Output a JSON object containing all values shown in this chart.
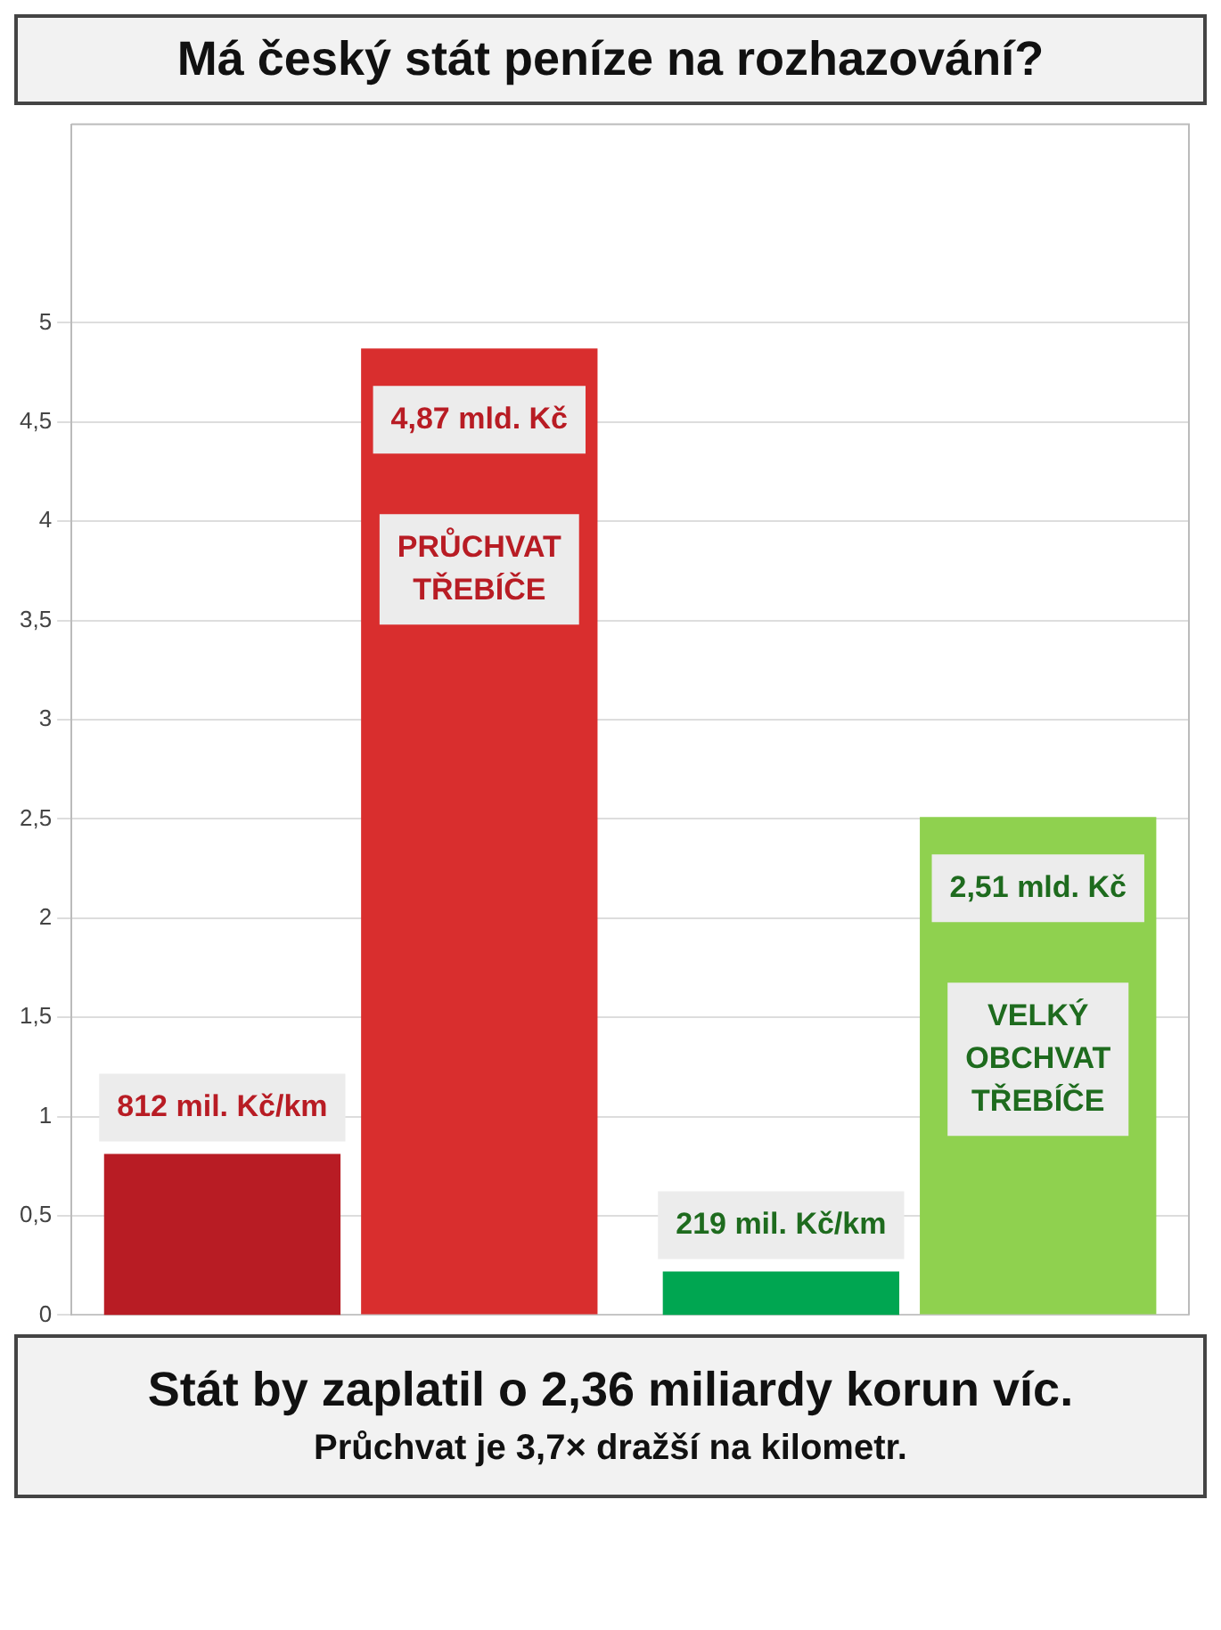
{
  "chart_data": {
    "type": "bar",
    "title": "Má český stát peníze na rozhazování?",
    "categories": [
      "PRŮCHVAT TŘEBÍČE",
      "VELKÝ OBCHVAT TŘEBÍČE"
    ],
    "series": [
      {
        "colors": [
          "#b81c24",
          "#00a651"
        ],
        "axis": "y2",
        "values": [
          812,
          219
        ],
        "value_labels": [
          "812 mil. Kč/km",
          "219 mil. Kč/km"
        ]
      },
      {
        "colors": [
          "#d92e2e",
          "#8fd14f"
        ],
        "values": [
          4.87,
          2.51
        ],
        "value_labels": [
          "4,87 mld. Kč",
          "2,51 mld. Kč"
        ]
      }
    ],
    "ylim": [
      0,
      6
    ],
    "y2lim": [
      0,
      6000
    ],
    "yticks": [
      0,
      {
        "value": 0.5,
        "label": "0,5"
      },
      1,
      {
        "value": 1.5,
        "label": "1,5"
      },
      2,
      {
        "value": 2.5,
        "label": "2,5"
      },
      3,
      {
        "value": 3.5,
        "label": "3,5"
      },
      4,
      {
        "value": 4.5,
        "label": "4,5"
      },
      5
    ],
    "grid": "y",
    "tick_labels": "y",
    "annotations": [
      "Stát by zaplatil o 2,36 miliardy korun víc.",
      "Průchvat je 3,7× dražší na kilometr."
    ]
  }
}
